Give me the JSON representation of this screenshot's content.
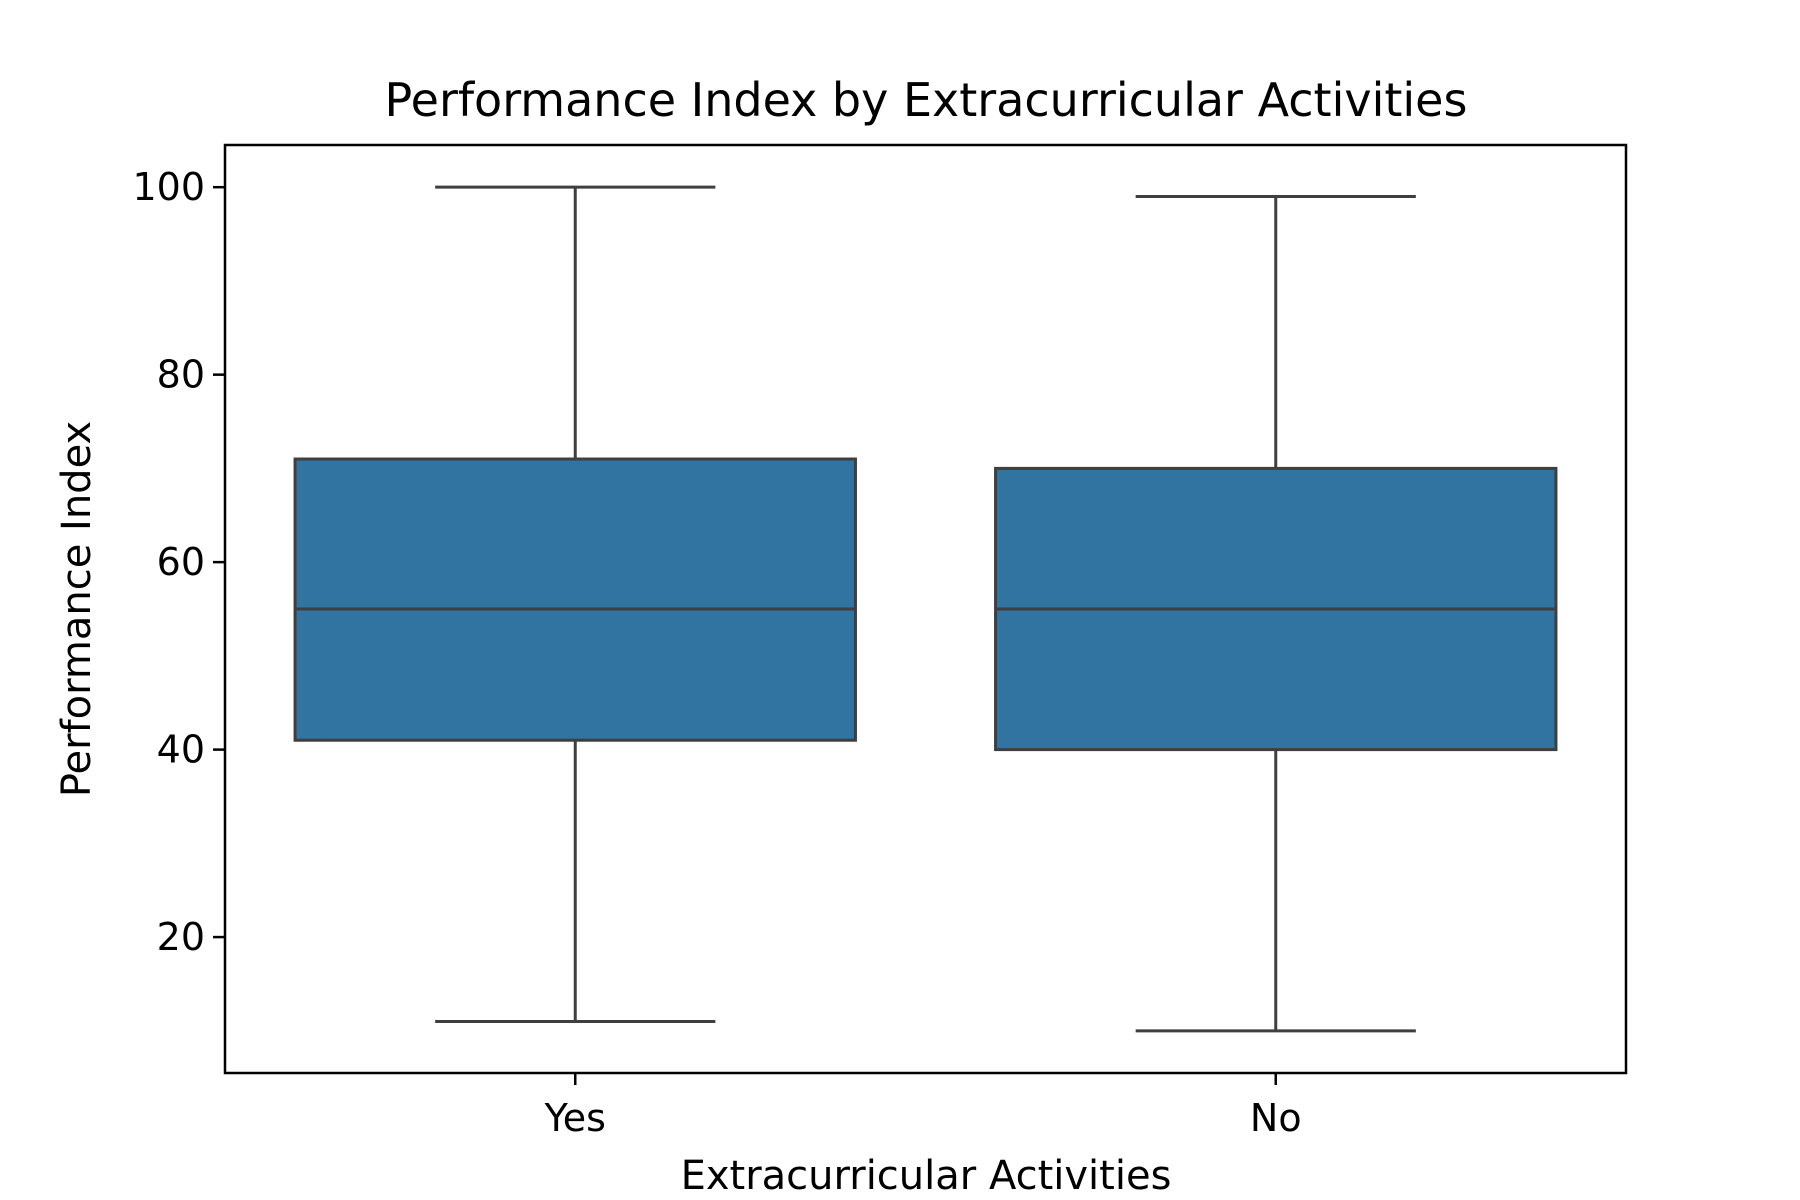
{
  "chart_data": {
    "type": "box",
    "title": "Performance Index by Extracurricular Activities",
    "xlabel": "Extracurricular Activities",
    "ylabel": "Performance Index",
    "categories": [
      "Yes",
      "No"
    ],
    "boxes": [
      {
        "category": "Yes",
        "min": 11,
        "q1": 41,
        "median": 55,
        "q3": 71,
        "max": 100
      },
      {
        "category": "No",
        "min": 10,
        "q1": 40,
        "median": 55,
        "q3": 70,
        "max": 99
      }
    ],
    "y_ticks": [
      20,
      40,
      60,
      80,
      100
    ],
    "ylim": [
      5.5,
      104.5
    ],
    "grid": false,
    "box_color": "#3274a1",
    "line_color": "#3f3f3f"
  }
}
